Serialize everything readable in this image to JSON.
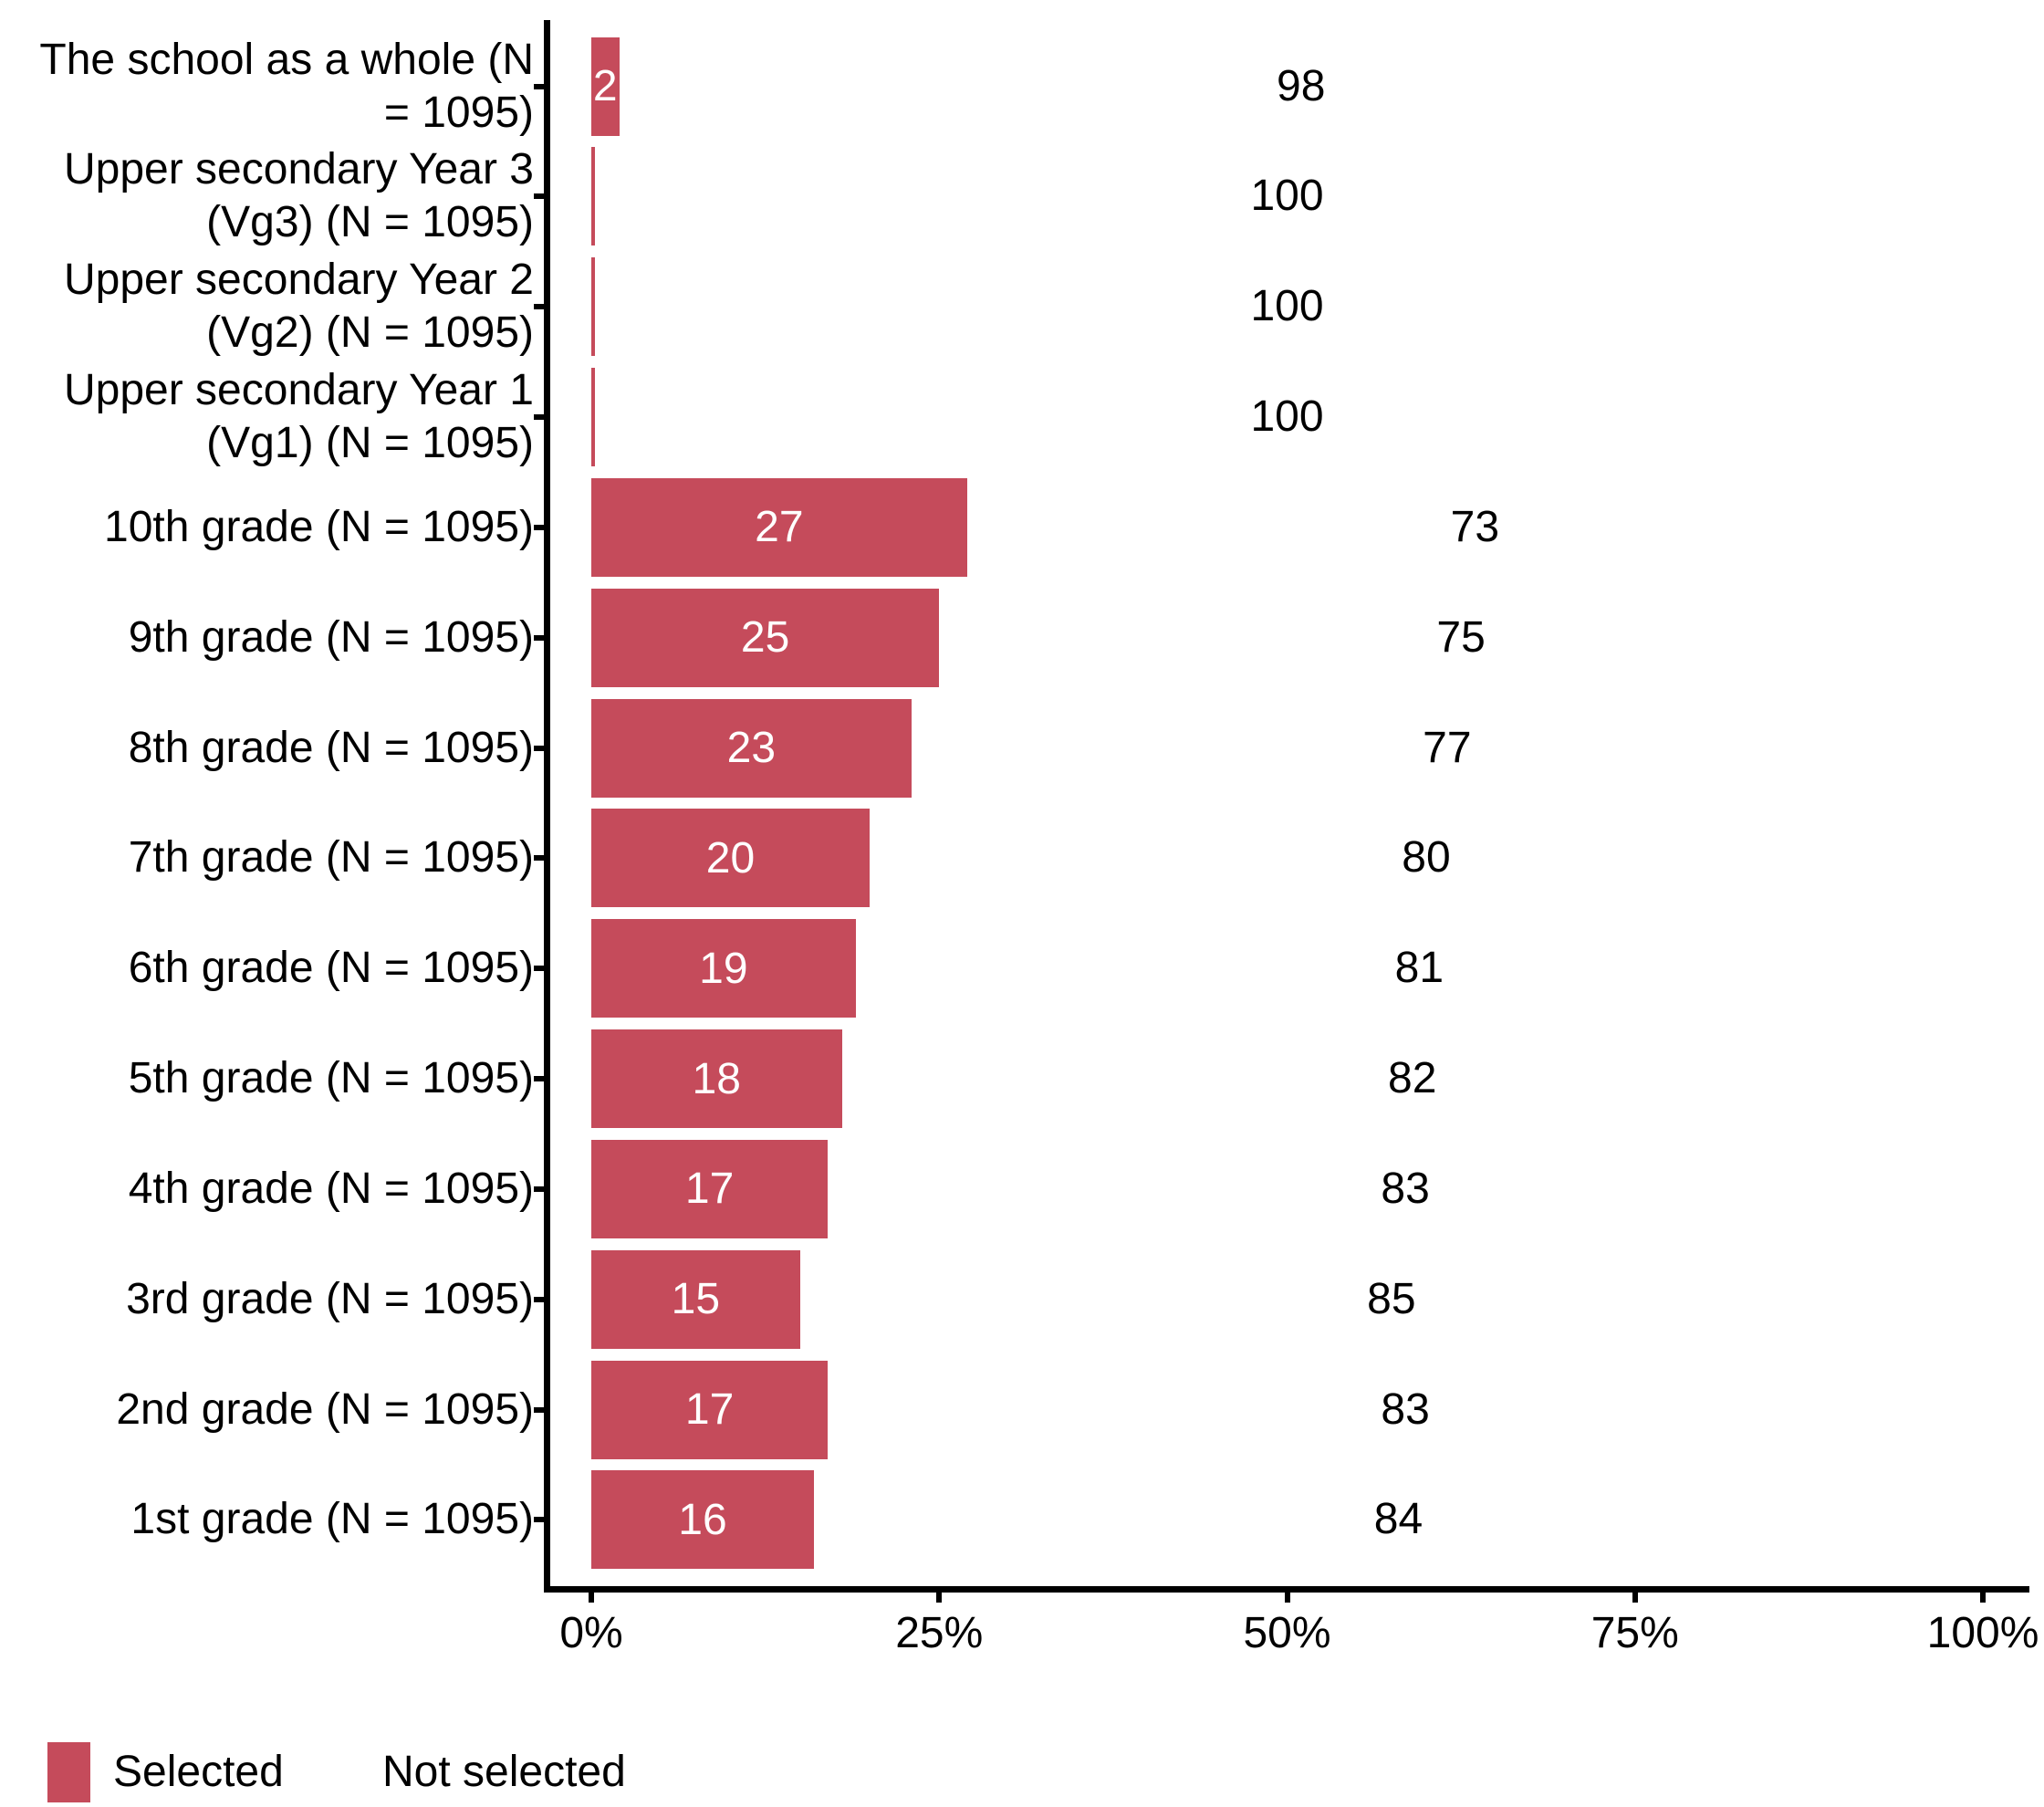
{
  "chart_data": {
    "type": "bar",
    "orientation": "horizontal",
    "stacked": true,
    "title": "",
    "xlabel": "",
    "ylabel": "",
    "grid": false,
    "x_axis": {
      "range": [
        0,
        100
      ],
      "ticks": [
        {
          "value": 0,
          "label": "0%"
        },
        {
          "value": 25,
          "label": "25%"
        },
        {
          "value": 50,
          "label": "50%"
        },
        {
          "value": 75,
          "label": "75%"
        },
        {
          "value": 100,
          "label": "100%"
        }
      ]
    },
    "series": [
      {
        "name": "Selected",
        "color": "#c54b5b"
      },
      {
        "name": "Not selected",
        "color": "#ffffff"
      }
    ],
    "categories": [
      {
        "label": "The school as a whole (N = 1095)",
        "lines": [
          "The school as a whole (N",
          "= 1095)"
        ],
        "selected": 2,
        "not_selected": 98,
        "selected_label": "2",
        "not_selected_label": "98"
      },
      {
        "label": "Upper secondary Year 3 (Vg3) (N = 1095)",
        "lines": [
          "Upper secondary Year 3",
          "(Vg3) (N = 1095)"
        ],
        "selected": 0,
        "not_selected": 100,
        "selected_label": "",
        "not_selected_label": "100"
      },
      {
        "label": "Upper secondary Year 2 (Vg2) (N = 1095)",
        "lines": [
          "Upper secondary Year 2",
          "(Vg2) (N = 1095)"
        ],
        "selected": 0,
        "not_selected": 100,
        "selected_label": "",
        "not_selected_label": "100"
      },
      {
        "label": "Upper secondary Year 1 (Vg1) (N = 1095)",
        "lines": [
          "Upper secondary Year 1",
          "(Vg1) (N = 1095)"
        ],
        "selected": 0,
        "not_selected": 100,
        "selected_label": "",
        "not_selected_label": "100"
      },
      {
        "label": "10th grade (N = 1095)",
        "lines": [
          "10th grade (N = 1095)"
        ],
        "selected": 27,
        "not_selected": 73,
        "selected_label": "27",
        "not_selected_label": "73"
      },
      {
        "label": "9th grade (N = 1095)",
        "lines": [
          "9th grade (N = 1095)"
        ],
        "selected": 25,
        "not_selected": 75,
        "selected_label": "25",
        "not_selected_label": "75"
      },
      {
        "label": "8th grade (N = 1095)",
        "lines": [
          "8th grade (N = 1095)"
        ],
        "selected": 23,
        "not_selected": 77,
        "selected_label": "23",
        "not_selected_label": "77"
      },
      {
        "label": "7th grade (N = 1095)",
        "lines": [
          "7th grade (N = 1095)"
        ],
        "selected": 20,
        "not_selected": 80,
        "selected_label": "20",
        "not_selected_label": "80"
      },
      {
        "label": "6th grade (N = 1095)",
        "lines": [
          "6th grade (N = 1095)"
        ],
        "selected": 19,
        "not_selected": 81,
        "selected_label": "19",
        "not_selected_label": "81"
      },
      {
        "label": "5th grade (N = 1095)",
        "lines": [
          "5th grade (N = 1095)"
        ],
        "selected": 18,
        "not_selected": 82,
        "selected_label": "18",
        "not_selected_label": "82"
      },
      {
        "label": "4th grade (N = 1095)",
        "lines": [
          "4th grade (N = 1095)"
        ],
        "selected": 17,
        "not_selected": 83,
        "selected_label": "17",
        "not_selected_label": "83"
      },
      {
        "label": "3rd grade (N = 1095)",
        "lines": [
          "3rd grade (N = 1095)"
        ],
        "selected": 15,
        "not_selected": 85,
        "selected_label": "15",
        "not_selected_label": "85"
      },
      {
        "label": "2nd grade (N = 1095)",
        "lines": [
          "2nd grade (N = 1095)"
        ],
        "selected": 17,
        "not_selected": 83,
        "selected_label": "17",
        "not_selected_label": "83"
      },
      {
        "label": "1st grade (N = 1095)",
        "lines": [
          "1st grade (N = 1095)"
        ],
        "selected": 16,
        "not_selected": 84,
        "selected_label": "16",
        "not_selected_label": "84"
      }
    ],
    "legend": {
      "position": "bottom-left",
      "entries": [
        {
          "label": "Selected",
          "color": "#c54b5b"
        },
        {
          "label": "Not selected",
          "color": "#ffffff"
        }
      ]
    }
  }
}
